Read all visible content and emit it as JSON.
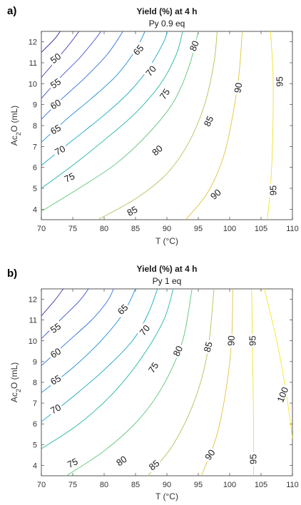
{
  "chart_data": [
    {
      "type": "contour",
      "panel_label": "a)",
      "title": "Yield (%) at 4 h",
      "subtitle": "Py 0.9 eq",
      "xlabel": "T (°C)",
      "ylabel_main": "Ac",
      "ylabel_sub": "2",
      "ylabel_tail": "O (mL)",
      "xlim": [
        70,
        110
      ],
      "ylim": [
        3.5,
        12.5
      ],
      "xticks": [
        70,
        75,
        80,
        85,
        90,
        95,
        100,
        105,
        110
      ],
      "yticks": [
        4,
        5,
        6,
        7,
        8,
        9,
        10,
        11,
        12
      ],
      "contours": [
        {
          "level": 45,
          "label": "",
          "color": "#3f1c8c",
          "points": [
            [
              70,
              11.5
            ],
            [
              72,
              12.1
            ],
            [
              73,
              12.5
            ]
          ]
        },
        {
          "level": 50,
          "label": "50",
          "color": "#4a2fb0",
          "points": [
            [
              70,
              10.3
            ],
            [
              72,
              11.0
            ],
            [
              74.5,
              11.9
            ],
            [
              76,
              12.5
            ]
          ]
        },
        {
          "level": 55,
          "label": "55",
          "color": "#3b4ed0",
          "points": [
            [
              70,
              9.3
            ],
            [
              73,
              10.3
            ],
            [
              76,
              11.2
            ],
            [
              78.5,
              12.1
            ],
            [
              79.5,
              12.5
            ]
          ]
        },
        {
          "level": 60,
          "label": "60",
          "color": "#2d6ee0",
          "points": [
            [
              70,
              8.3
            ],
            [
              73,
              9.2
            ],
            [
              77,
              10.3
            ],
            [
              80.5,
              11.4
            ],
            [
              83,
              12.5
            ]
          ]
        },
        {
          "level": 65,
          "label": "65",
          "color": "#1f8fd6",
          "points": [
            [
              70,
              7.2
            ],
            [
              74,
              8.3
            ],
            [
              78,
              9.3
            ],
            [
              82,
              10.4
            ],
            [
              85,
              11.6
            ],
            [
              86.5,
              12.5
            ]
          ]
        },
        {
          "level": 70,
          "label": "70",
          "color": "#17a6c2",
          "points": [
            [
              70,
              6.1
            ],
            [
              75,
              7.3
            ],
            [
              80,
              8.5
            ],
            [
              84,
              9.6
            ],
            [
              87,
              10.7
            ],
            [
              89.5,
              12.0
            ],
            [
              90,
              12.5
            ]
          ]
        },
        {
          "level": 75,
          "label": "75",
          "color": "#22b7a0",
          "points": [
            [
              70,
              5.0
            ],
            [
              75,
              6.1
            ],
            [
              80,
              7.3
            ],
            [
              85,
              8.6
            ],
            [
              89,
              10.0
            ],
            [
              91.5,
              11.4
            ],
            [
              92.5,
              12.5
            ]
          ]
        },
        {
          "level": 80,
          "label": "80",
          "color": "#5cc478",
          "points": [
            [
              70,
              3.9
            ],
            [
              76,
              5.0
            ],
            [
              82,
              6.2
            ],
            [
              87,
              7.6
            ],
            [
              91,
              9.1
            ],
            [
              93.5,
              10.8
            ],
            [
              95,
              12.5
            ]
          ]
        },
        {
          "level": 85,
          "label": "85",
          "color": "#a8c85a",
          "points": [
            [
              79,
              3.5
            ],
            [
              85,
              4.5
            ],
            [
              90,
              5.7
            ],
            [
              93.5,
              7.2
            ],
            [
              96,
              9.0
            ],
            [
              97.5,
              11.0
            ],
            [
              98,
              12.5
            ]
          ]
        },
        {
          "level": 90,
          "label": "90",
          "color": "#e0c33f",
          "points": [
            [
              93,
              3.5
            ],
            [
              96.5,
              4.8
            ],
            [
              99,
              6.5
            ],
            [
              100.5,
              8.5
            ],
            [
              101.5,
              10.5
            ],
            [
              102,
              12.5
            ]
          ]
        },
        {
          "level": 95,
          "label": "95",
          "color": "#f2e02a",
          "points": [
            [
              106,
              3.5
            ],
            [
              106.6,
              5.5
            ],
            [
              106.9,
              8.0
            ],
            [
              106.9,
              10.5
            ],
            [
              106.5,
              12.5
            ]
          ]
        }
      ],
      "labels": [
        {
          "text": "50",
          "x": 72.3,
          "y": 11.2,
          "angle": -38
        },
        {
          "text": "55",
          "x": 72.3,
          "y": 10.0,
          "angle": -35
        },
        {
          "text": "60",
          "x": 72.3,
          "y": 9.0,
          "angle": -32
        },
        {
          "text": "65",
          "x": 72.3,
          "y": 7.8,
          "angle": -30
        },
        {
          "text": "70",
          "x": 73.0,
          "y": 6.8,
          "angle": -28
        },
        {
          "text": "75",
          "x": 74.5,
          "y": 5.5,
          "angle": -25
        },
        {
          "text": "65",
          "x": 85.5,
          "y": 11.6,
          "angle": -48
        },
        {
          "text": "70",
          "x": 87.5,
          "y": 10.6,
          "angle": -50
        },
        {
          "text": "75",
          "x": 89.7,
          "y": 9.5,
          "angle": -55
        },
        {
          "text": "80",
          "x": 94.4,
          "y": 11.8,
          "angle": -68
        },
        {
          "text": "85",
          "x": 96.7,
          "y": 8.2,
          "angle": -64
        },
        {
          "text": "80",
          "x": 88.5,
          "y": 6.8,
          "angle": -42
        },
        {
          "text": "85",
          "x": 84.5,
          "y": 3.9,
          "angle": -28
        },
        {
          "text": "90",
          "x": 97.8,
          "y": 4.7,
          "angle": -42
        },
        {
          "text": "90",
          "x": 101.4,
          "y": 9.8,
          "angle": -80
        },
        {
          "text": "95",
          "x": 108.0,
          "y": 10.1,
          "angle": -90
        },
        {
          "text": "95",
          "x": 107.0,
          "y": 4.9,
          "angle": -90
        }
      ]
    },
    {
      "type": "contour",
      "panel_label": "b)",
      "title": "Yield (%) at 4 h",
      "subtitle": "Py 1 eq",
      "xlabel": "T (°C)",
      "ylabel_main": "Ac",
      "ylabel_sub": "2",
      "ylabel_tail": "O (mL)",
      "xlim": [
        70,
        110
      ],
      "ylim": [
        3.5,
        12.5
      ],
      "xticks": [
        70,
        75,
        80,
        85,
        90,
        95,
        100,
        105,
        110
      ],
      "yticks": [
        4,
        5,
        6,
        7,
        8,
        9,
        10,
        11,
        12
      ],
      "contours": [
        {
          "level": 50,
          "label": "",
          "color": "#4a2fb0",
          "points": [
            [
              70,
              11.2
            ],
            [
              72,
              11.9
            ],
            [
              73.5,
              12.5
            ]
          ]
        },
        {
          "level": 55,
          "label": "55",
          "color": "#3b4ed0",
          "points": [
            [
              70,
              10.1
            ],
            [
              73,
              11.0
            ],
            [
              76,
              11.9
            ],
            [
              77.5,
              12.5
            ]
          ]
        },
        {
          "level": 60,
          "label": "60",
          "color": "#2d6ee0",
          "points": [
            [
              70,
              8.8
            ],
            [
              74,
              9.9
            ],
            [
              78,
              11.0
            ],
            [
              80.5,
              11.9
            ],
            [
              81.5,
              12.5
            ]
          ]
        },
        {
          "level": 65,
          "label": "65",
          "color": "#1f8fd6",
          "points": [
            [
              70,
              7.5
            ],
            [
              75,
              8.7
            ],
            [
              79.5,
              10.0
            ],
            [
              83,
              11.3
            ],
            [
              85,
              12.5
            ]
          ]
        },
        {
          "level": 70,
          "label": "70",
          "color": "#17a6c2",
          "points": [
            [
              70,
              6.1
            ],
            [
              75,
              7.3
            ],
            [
              80,
              8.6
            ],
            [
              84.5,
              10.0
            ],
            [
              87,
              11.3
            ],
            [
              88.5,
              12.5
            ]
          ]
        },
        {
          "level": 75,
          "label": "75",
          "color": "#22b7a0",
          "points": [
            [
              70,
              4.8
            ],
            [
              76,
              6.0
            ],
            [
              81.5,
              7.5
            ],
            [
              86,
              9.2
            ],
            [
              89.5,
              11.0
            ],
            [
              91,
              12.5
            ]
          ]
        },
        {
          "level": 80,
          "label": "80",
          "color": "#5cc478",
          "points": [
            [
              74,
              3.5
            ],
            [
              80,
              4.7
            ],
            [
              85.5,
              6.2
            ],
            [
              89.5,
              7.9
            ],
            [
              92.5,
              10.0
            ],
            [
              94,
              12.5
            ]
          ]
        },
        {
          "level": 85,
          "label": "85",
          "color": "#a8c85a",
          "points": [
            [
              87,
              3.5
            ],
            [
              91,
              5.0
            ],
            [
              94.5,
              7.2
            ],
            [
              96.5,
              9.5
            ],
            [
              97.5,
              12.5
            ]
          ]
        },
        {
          "level": 90,
          "label": "90",
          "color": "#e0c33f",
          "points": [
            [
              95.5,
              3.5
            ],
            [
              98,
              5.5
            ],
            [
              99.5,
              7.8
            ],
            [
              100.3,
              10.0
            ],
            [
              100.5,
              12.5
            ]
          ]
        },
        {
          "level": 95,
          "label": "95",
          "color": "#f2e02a",
          "points": [
            [
              103.8,
              3.5
            ],
            [
              103.8,
              6.0
            ],
            [
              103.7,
              8.5
            ],
            [
              103.6,
              10.5
            ],
            [
              103.5,
              12.5
            ]
          ]
        },
        {
          "level": 100,
          "label": "100",
          "color": "#f7e629",
          "points": [
            [
              105.5,
              12.5
            ],
            [
              107.5,
              10.0
            ],
            [
              109.0,
              7.5
            ],
            [
              110,
              5.3
            ]
          ]
        }
      ],
      "labels": [
        {
          "text": "55",
          "x": 72.3,
          "y": 10.6,
          "angle": -35
        },
        {
          "text": "60",
          "x": 72.3,
          "y": 9.4,
          "angle": -32
        },
        {
          "text": "65",
          "x": 72.3,
          "y": 8.1,
          "angle": -30
        },
        {
          "text": "70",
          "x": 72.3,
          "y": 6.7,
          "angle": -28
        },
        {
          "text": "75",
          "x": 75.0,
          "y": 4.1,
          "angle": -25
        },
        {
          "text": "65",
          "x": 83.0,
          "y": 11.5,
          "angle": -45
        },
        {
          "text": "70",
          "x": 86.5,
          "y": 10.5,
          "angle": -50
        },
        {
          "text": "75",
          "x": 87.9,
          "y": 8.7,
          "angle": -55
        },
        {
          "text": "80",
          "x": 91.8,
          "y": 9.5,
          "angle": -64
        },
        {
          "text": "80",
          "x": 82.8,
          "y": 4.2,
          "angle": -35
        },
        {
          "text": "85",
          "x": 96.6,
          "y": 9.7,
          "angle": -75
        },
        {
          "text": "85",
          "x": 88.0,
          "y": 4.0,
          "angle": -40
        },
        {
          "text": "90",
          "x": 100.3,
          "y": 10.0,
          "angle": -88
        },
        {
          "text": "90",
          "x": 96.9,
          "y": 4.5,
          "angle": -55
        },
        {
          "text": "95",
          "x": 103.7,
          "y": 10.0,
          "angle": -90
        },
        {
          "text": "95",
          "x": 103.8,
          "y": 4.3,
          "angle": -90
        },
        {
          "text": "100",
          "x": 108.5,
          "y": 7.4,
          "angle": -68
        }
      ]
    }
  ]
}
